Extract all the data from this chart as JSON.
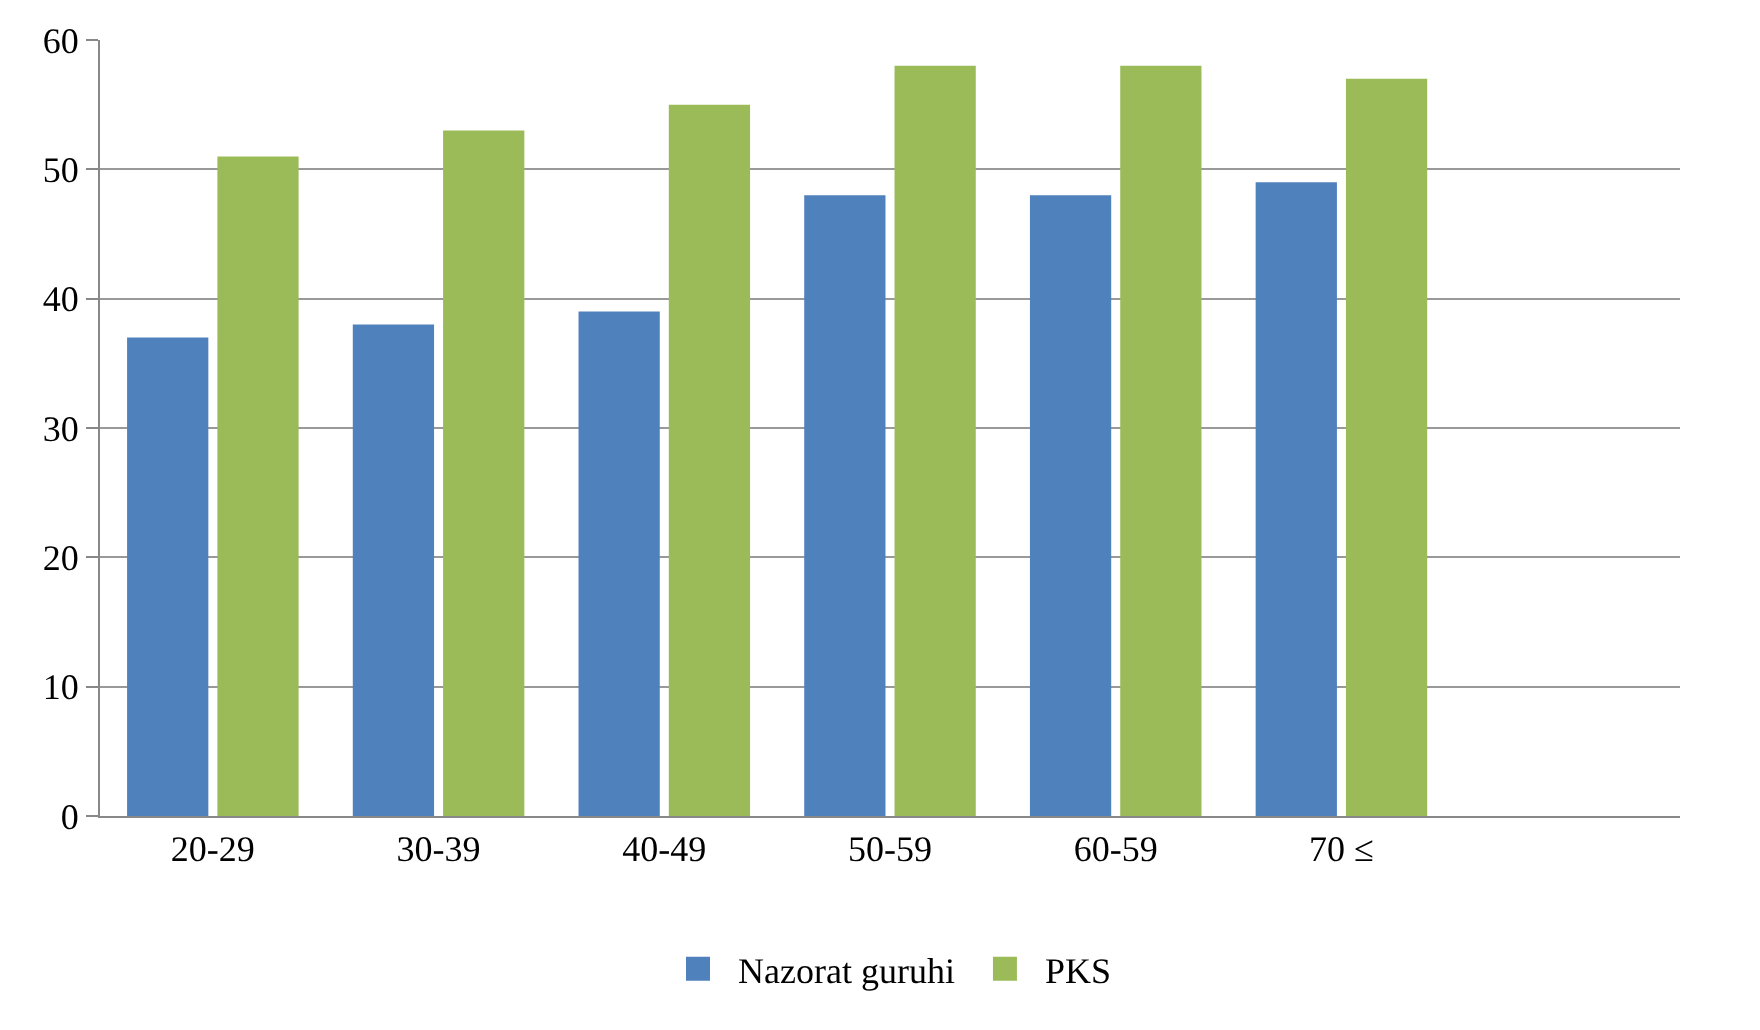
{
  "chart_data": {
    "type": "bar",
    "categories": [
      "20-29",
      "30-39",
      "40-49",
      "50-59",
      "60-59",
      "70 ≤",
      null
    ],
    "series": [
      {
        "name": "Nazorat guruhi",
        "color": "#4f81bd",
        "values": [
          37,
          38,
          39,
          48,
          48,
          49,
          null
        ]
      },
      {
        "name": "PKS",
        "color": "#9bbb59",
        "values": [
          51,
          53,
          55,
          58,
          58,
          57,
          null
        ]
      }
    ],
    "ylim": [
      0,
      60
    ],
    "yticks": [
      0,
      10,
      20,
      30,
      40,
      50,
      60
    ],
    "grid": "y",
    "legend": "bottom"
  }
}
